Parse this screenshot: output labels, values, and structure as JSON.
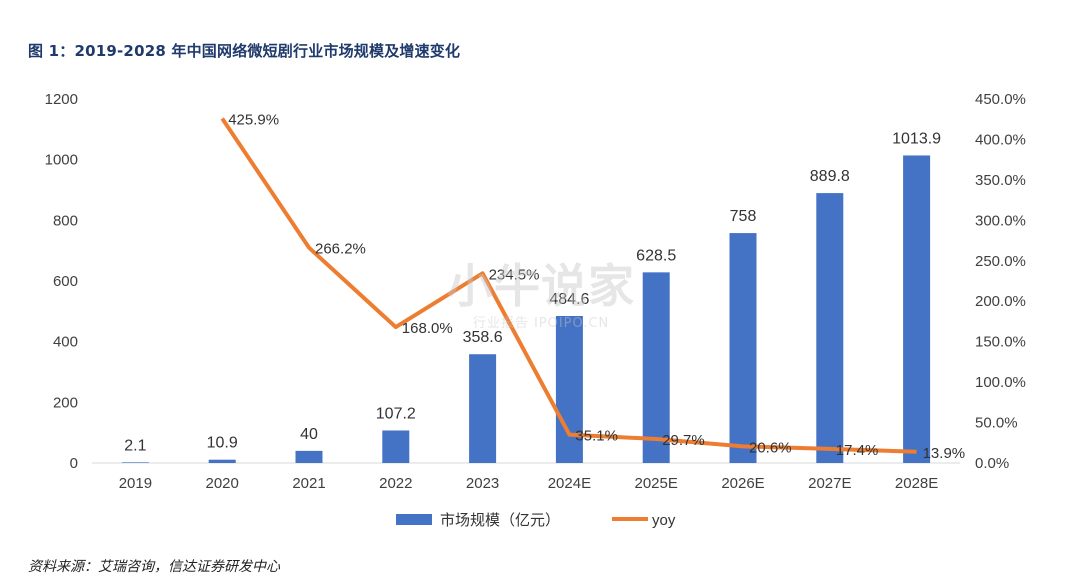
{
  "title": "图 1：2019-2028 年中国网络微短剧行业市场规模及增速变化",
  "source": "资料来源：艾瑞咨询，信达证券研发中心",
  "watermark": {
    "main": "小牛说家",
    "sub": "行业报告 IPOIPO.CN"
  },
  "colors": {
    "bar": "#4472c4",
    "line": "#ed7d31",
    "title": "#1f3a6b"
  },
  "chart_data": {
    "type": "bar+line",
    "categories": [
      "2019",
      "2020",
      "2021",
      "2022",
      "2023",
      "2024E",
      "2025E",
      "2026E",
      "2027E",
      "2028E"
    ],
    "series": [
      {
        "name": "市场规模（亿元）",
        "type": "bar",
        "axis": "left",
        "values": [
          2.1,
          10.9,
          40,
          107.2,
          358.6,
          484.6,
          628.5,
          758,
          889.8,
          1013.9
        ],
        "labels": [
          "2.1",
          "10.9",
          "40",
          "107.2",
          "358.6",
          "484.6",
          "628.5",
          "758",
          "889.8",
          "1013.9"
        ]
      },
      {
        "name": "yoy",
        "type": "line",
        "axis": "right",
        "values": [
          null,
          425.9,
          266.2,
          168.0,
          234.5,
          35.1,
          29.7,
          20.6,
          17.4,
          13.9
        ],
        "labels": [
          null,
          "425.9%",
          "266.2%",
          "168.0%",
          "234.5%",
          "35.1%",
          "29.7%",
          "20.6%",
          "17.4%",
          "13.9%"
        ]
      }
    ],
    "left_axis": {
      "min": 0,
      "max": 1200,
      "ticks": [
        "0",
        "200",
        "400",
        "600",
        "800",
        "1000",
        "1200"
      ]
    },
    "right_axis": {
      "min": 0,
      "max": 450,
      "ticks": [
        "0.0%",
        "50.0%",
        "100.0%",
        "150.0%",
        "200.0%",
        "250.0%",
        "300.0%",
        "350.0%",
        "400.0%",
        "450.0%"
      ]
    },
    "legend_position": "bottom",
    "grid": false
  }
}
